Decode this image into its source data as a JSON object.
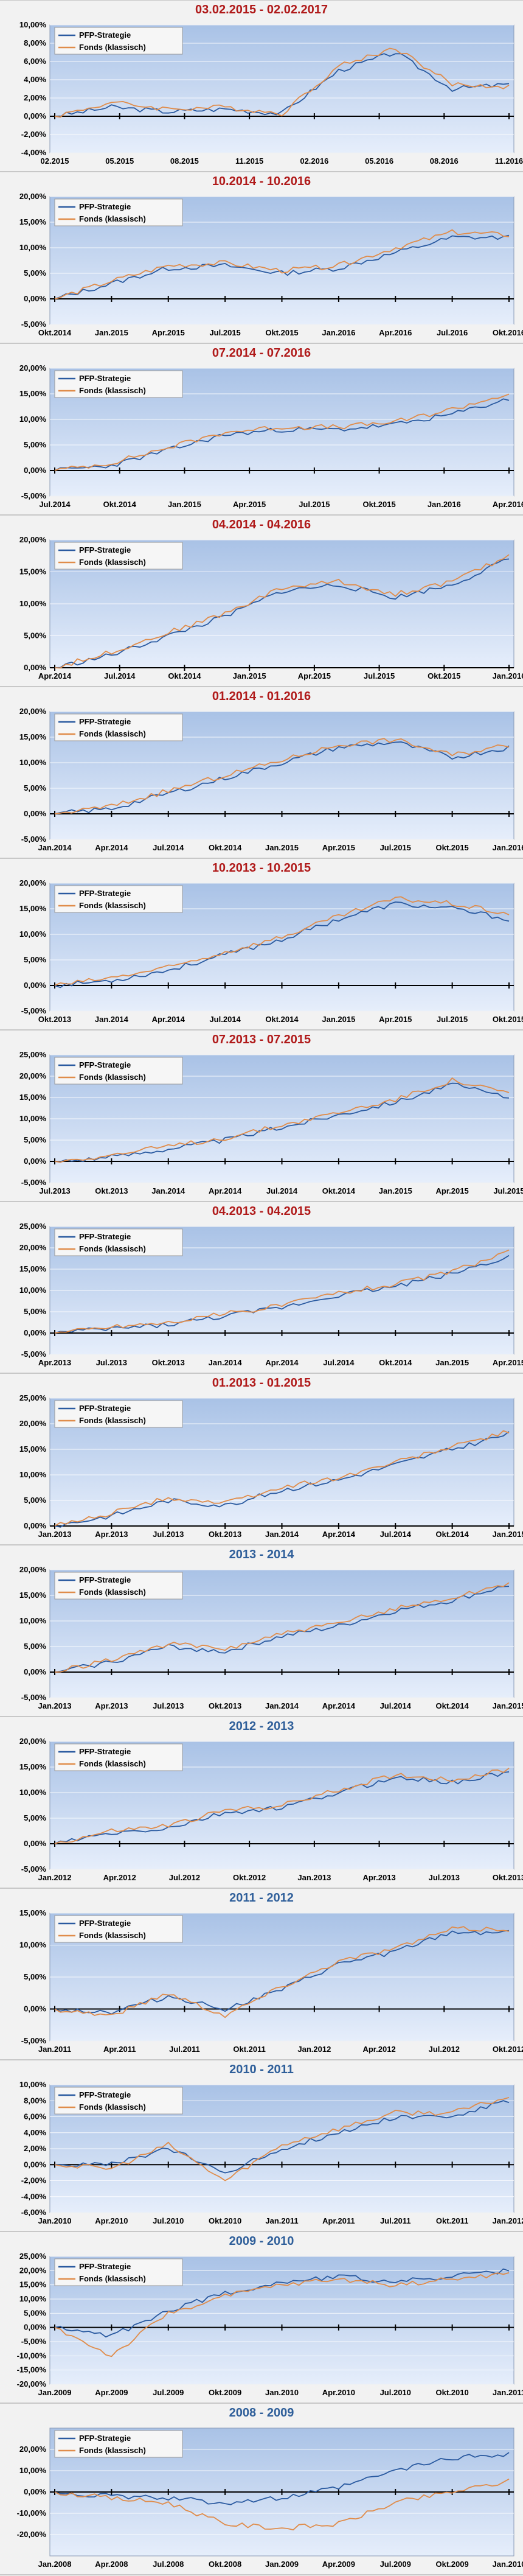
{
  "colors": {
    "strategy": "#2a5aa0",
    "fund": "#e08c4a",
    "title_dated": "#b01a1a",
    "title_year": "#2f5f9a",
    "plot_top": "#a9c2e6",
    "plot_bottom": "#e6eefb",
    "grid": "#ffffff",
    "axis": "#000000"
  },
  "legend": {
    "series_1": "PFP-Strategie",
    "series_2": "Fonds (klassisch)"
  },
  "chart_data": [
    {
      "type": "line",
      "title": "03.02.2015 - 02.02.2017",
      "title_style": "dated",
      "ylim": [
        -4,
        10
      ],
      "yticks": [
        -4,
        -2,
        0,
        2,
        4,
        6,
        8,
        10
      ],
      "ytick_labels": [
        "-4,00%",
        "-2,00%",
        "0,00%",
        "2,00%",
        "4,00%",
        "6,00%",
        "8,00%",
        "10,00%"
      ],
      "xticks": [
        "02.2015",
        "05.2015",
        "08.2015",
        "11.2015",
        "02.2016",
        "05.2016",
        "08.2016",
        "11.2016"
      ],
      "grid": true,
      "legend_position": "top-left",
      "x": [
        0,
        1,
        2,
        3,
        4,
        5,
        6,
        7,
        8
      ],
      "series": [
        {
          "name": "PFP-Strategie",
          "values": [
            0,
            1,
            0.5,
            0.8,
            0.3,
            5,
            7,
            3,
            3.5
          ]
        },
        {
          "name": "Fonds (klassisch)",
          "values": [
            0,
            1.5,
            0.8,
            1,
            0.3,
            5.5,
            7.5,
            3.5,
            3.2
          ]
        }
      ]
    },
    {
      "type": "line",
      "title": "10.2014 - 10.2016",
      "title_style": "dated",
      "ylim": [
        -5,
        20
      ],
      "yticks": [
        -5,
        0,
        5,
        10,
        15,
        20
      ],
      "ytick_labels": [
        "-5,00%",
        "0,00%",
        "5,00%",
        "10,00%",
        "15,00%",
        "20,00%"
      ],
      "xticks": [
        "Okt.2014",
        "Jan.2015",
        "Apr.2015",
        "Jul.2015",
        "Okt.2015",
        "Jan.2016",
        "Apr.2016",
        "Jul.2016",
        "Okt.2016"
      ],
      "grid": true,
      "legend_position": "top-left",
      "x": [
        0,
        1,
        2,
        3,
        4,
        5,
        6,
        7,
        8
      ],
      "series": [
        {
          "name": "PFP-Strategie",
          "values": [
            0,
            3,
            6,
            6.5,
            5,
            6,
            9,
            12,
            12
          ]
        },
        {
          "name": "Fonds (klassisch)",
          "values": [
            0,
            3.5,
            6.5,
            7,
            5.5,
            6.5,
            10,
            13,
            12.5
          ]
        }
      ]
    },
    {
      "type": "line",
      "title": "07.2014 - 07.2016",
      "title_style": "dated",
      "ylim": [
        -5,
        20
      ],
      "yticks": [
        -5,
        0,
        5,
        10,
        15,
        20
      ],
      "ytick_labels": [
        "-5,00%",
        "0,00%",
        "5,00%",
        "10,00%",
        "15,00%",
        "20,00%"
      ],
      "xticks": [
        "Jul.2014",
        "Okt.2014",
        "Jan.2015",
        "Apr.2015",
        "Jul.2015",
        "Okt.2015",
        "Jan.2016",
        "Apr.2016"
      ],
      "grid": true,
      "legend_position": "top-left",
      "x": [
        0,
        1,
        2,
        3,
        4,
        5,
        6,
        7,
        8
      ],
      "series": [
        {
          "name": "PFP-Strategie",
          "values": [
            0,
            1,
            4,
            7,
            8,
            8,
            9,
            11,
            14
          ]
        },
        {
          "name": "Fonds (klassisch)",
          "values": [
            0,
            1.5,
            4.5,
            7.5,
            8.5,
            8.5,
            9.5,
            12,
            15
          ]
        }
      ]
    },
    {
      "type": "line",
      "title": "04.2014 - 04.2016",
      "title_style": "dated",
      "ylim": [
        0,
        20
      ],
      "yticks": [
        0,
        5,
        10,
        15,
        20
      ],
      "ytick_labels": [
        "0,00%",
        "5,00%",
        "10,00%",
        "15,00%",
        "20,00%"
      ],
      "xticks": [
        "Apr.2014",
        "Jul.2014",
        "Okt.2014",
        "Jan.2015",
        "Apr.2015",
        "Jul.2015",
        "Okt.2015",
        "Jan.2016"
      ],
      "grid": true,
      "legend_position": "top-left",
      "x": [
        0,
        1,
        2,
        3,
        4,
        5,
        6,
        7,
        8
      ],
      "series": [
        {
          "name": "PFP-Strategie",
          "values": [
            0,
            2,
            5,
            8,
            12,
            13,
            11,
            13,
            17
          ]
        },
        {
          "name": "Fonds (klassisch)",
          "values": [
            0,
            2.5,
            5.5,
            8.5,
            12.5,
            13.5,
            11.5,
            13.5,
            17.5
          ]
        }
      ]
    },
    {
      "type": "line",
      "title": "01.2014 - 01.2016",
      "title_style": "dated",
      "ylim": [
        -5,
        20
      ],
      "yticks": [
        -5,
        0,
        5,
        10,
        15,
        20
      ],
      "ytick_labels": [
        "-5,00%",
        "0,00%",
        "5,00%",
        "10,00%",
        "15,00%",
        "20,00%"
      ],
      "xticks": [
        "Jan.2014",
        "Apr.2014",
        "Jul.2014",
        "Okt.2014",
        "Jan.2015",
        "Apr.2015",
        "Jul.2015",
        "Okt.2015",
        "Jan.2016"
      ],
      "grid": true,
      "legend_position": "top-left",
      "x": [
        0,
        1,
        2,
        3,
        4,
        5,
        6,
        7,
        8
      ],
      "series": [
        {
          "name": "PFP-Strategie",
          "values": [
            0,
            1,
            4,
            7,
            10,
            13,
            14,
            11,
            13
          ]
        },
        {
          "name": "Fonds (klassisch)",
          "values": [
            0,
            1.5,
            4.5,
            7.5,
            10.5,
            13.5,
            14.5,
            11.5,
            13.5
          ]
        }
      ]
    },
    {
      "type": "line",
      "title": "10.2013 - 10.2015",
      "title_style": "dated",
      "ylim": [
        -5,
        20
      ],
      "yticks": [
        -5,
        0,
        5,
        10,
        15,
        20
      ],
      "ytick_labels": [
        "-5,00%",
        "0,00%",
        "5,00%",
        "10,00%",
        "15,00%",
        "20,00%"
      ],
      "xticks": [
        "Okt.2013",
        "Jan.2014",
        "Apr.2014",
        "Jul.2014",
        "Okt.2014",
        "Jan.2015",
        "Apr.2015",
        "Jul.2015",
        "Okt.2015"
      ],
      "grid": true,
      "legend_position": "top-left",
      "x": [
        0,
        1,
        2,
        3,
        4,
        5,
        6,
        7,
        8
      ],
      "series": [
        {
          "name": "PFP-Strategie",
          "values": [
            0,
            1,
            3,
            6,
            9,
            13,
            16,
            15,
            13
          ]
        },
        {
          "name": "Fonds (klassisch)",
          "values": [
            0,
            1.5,
            3.5,
            6.5,
            9.5,
            13.5,
            17,
            16,
            14
          ]
        }
      ]
    },
    {
      "type": "line",
      "title": "07.2013 - 07.2015",
      "title_style": "dated",
      "ylim": [
        -5,
        25
      ],
      "yticks": [
        -5,
        0,
        5,
        10,
        15,
        20,
        25
      ],
      "ytick_labels": [
        "-5,00%",
        "0,00%",
        "5,00%",
        "10,00%",
        "15,00%",
        "20,00%",
        "25,00%"
      ],
      "xticks": [
        "Jul.2013",
        "Okt.2013",
        "Jan.2014",
        "Apr.2014",
        "Jul.2014",
        "Okt.2014",
        "Jan.2015",
        "Apr.2015",
        "Jul.2015"
      ],
      "grid": true,
      "legend_position": "top-left",
      "x": [
        0,
        1,
        2,
        3,
        4,
        5,
        6,
        7,
        8
      ],
      "series": [
        {
          "name": "PFP-Strategie",
          "values": [
            0,
            1,
            3,
            5,
            8,
            11,
            14,
            18,
            15
          ]
        },
        {
          "name": "Fonds (klassisch)",
          "values": [
            0,
            1.5,
            3.5,
            5.5,
            8.5,
            11.5,
            14.5,
            19,
            16
          ]
        }
      ]
    },
    {
      "type": "line",
      "title": "04.2013 - 04.2015",
      "title_style": "dated",
      "ylim": [
        -5,
        25
      ],
      "yticks": [
        -5,
        0,
        5,
        10,
        15,
        20,
        25
      ],
      "ytick_labels": [
        "-5,00%",
        "0,00%",
        "5,00%",
        "10,00%",
        "15,00%",
        "20,00%",
        "25,00%"
      ],
      "xticks": [
        "Apr.2013",
        "Jul.2013",
        "Okt.2013",
        "Jan.2014",
        "Apr.2014",
        "Jul.2014",
        "Okt.2014",
        "Jan.2015",
        "Apr.2015"
      ],
      "grid": true,
      "legend_position": "top-left",
      "x": [
        0,
        1,
        2,
        3,
        4,
        5,
        6,
        7,
        8
      ],
      "series": [
        {
          "name": "PFP-Strategie",
          "values": [
            0,
            1,
            2,
            4,
            6,
            9,
            11,
            14,
            18
          ]
        },
        {
          "name": "Fonds (klassisch)",
          "values": [
            0,
            1.5,
            2.5,
            4.5,
            6.5,
            9.5,
            11.5,
            14.5,
            19
          ]
        }
      ]
    },
    {
      "type": "line",
      "title": "01.2013 - 01.2015",
      "title_style": "dated",
      "ylim": [
        0,
        25
      ],
      "yticks": [
        0,
        5,
        10,
        15,
        20,
        25
      ],
      "ytick_labels": [
        "0,00%",
        "5,00%",
        "10,00%",
        "15,00%",
        "20,00%",
        "25,00%"
      ],
      "xticks": [
        "Jan.2013",
        "Apr.2013",
        "Jul.2013",
        "Okt.2013",
        "Jan.2014",
        "Apr.2014",
        "Jul.2014",
        "Okt.2014",
        "Jan.2015"
      ],
      "grid": true,
      "legend_position": "top-left",
      "x": [
        0,
        1,
        2,
        3,
        4,
        5,
        6,
        7,
        8
      ],
      "series": [
        {
          "name": "PFP-Strategie",
          "values": [
            0,
            2,
            5,
            4,
            7,
            9,
            12,
            15,
            18
          ]
        },
        {
          "name": "Fonds (klassisch)",
          "values": [
            0,
            2.5,
            5.5,
            4.5,
            7.5,
            9.5,
            12.5,
            15.5,
            18.5
          ]
        }
      ]
    },
    {
      "type": "line",
      "title": "2013 - 2014",
      "title_style": "year",
      "ylim": [
        -5,
        20
      ],
      "yticks": [
        -5,
        0,
        5,
        10,
        15,
        20
      ],
      "ytick_labels": [
        "-5,00%",
        "0,00%",
        "5,00%",
        "10,00%",
        "15,00%",
        "20,00%"
      ],
      "xticks": [
        "Jan.2013",
        "Apr.2013",
        "Jul.2013",
        "Okt.2013",
        "Jan.2014",
        "Apr.2014",
        "Jul.2014",
        "Okt.2014",
        "Jan.2015"
      ],
      "grid": true,
      "legend_position": "top-left",
      "x": [
        0,
        1,
        2,
        3,
        4,
        5,
        6,
        7,
        8
      ],
      "series": [
        {
          "name": "PFP-Strategie",
          "values": [
            0,
            2,
            5,
            4,
            7,
            9,
            12,
            14,
            17
          ]
        },
        {
          "name": "Fonds (klassisch)",
          "values": [
            0,
            2.5,
            5.5,
            4.5,
            7.5,
            9.5,
            12.5,
            14.5,
            17.5
          ]
        }
      ]
    },
    {
      "type": "line",
      "title": "2012 - 2013",
      "title_style": "year",
      "ylim": [
        -5,
        20
      ],
      "yticks": [
        -5,
        0,
        5,
        10,
        15,
        20
      ],
      "ytick_labels": [
        "-5,00%",
        "0,00%",
        "5,00%",
        "10,00%",
        "15,00%",
        "20,00%"
      ],
      "xticks": [
        "Jan.2012",
        "Apr.2012",
        "Jul.2012",
        "Okt.2012",
        "Jan.2013",
        "Apr.2013",
        "Jul.2013",
        "Okt.2013"
      ],
      "grid": true,
      "legend_position": "top-left",
      "x": [
        0,
        1,
        2,
        3,
        4,
        5,
        6,
        7,
        8
      ],
      "series": [
        {
          "name": "PFP-Strategie",
          "values": [
            0,
            2,
            3,
            6,
            7,
            10,
            13,
            12,
            14
          ]
        },
        {
          "name": "Fonds (klassisch)",
          "values": [
            0,
            2.5,
            3.5,
            6.5,
            7.5,
            10.5,
            13.5,
            12.5,
            14.5
          ]
        }
      ]
    },
    {
      "type": "line",
      "title": "2011 - 2012",
      "title_style": "year",
      "ylim": [
        -5,
        15
      ],
      "yticks": [
        -5,
        0,
        5,
        10,
        15
      ],
      "ytick_labels": [
        "-5,00%",
        "0,00%",
        "5,00%",
        "10,00%",
        "15,00%"
      ],
      "xticks": [
        "Jan.2011",
        "Apr.2011",
        "Jul.2011",
        "Okt.2011",
        "Jan.2012",
        "Apr.2012",
        "Jul.2012",
        "Okt.2012"
      ],
      "grid": true,
      "legend_position": "top-left",
      "x": [
        0,
        1,
        2,
        3,
        4,
        5,
        6,
        7,
        8
      ],
      "series": [
        {
          "name": "PFP-Strategie",
          "values": [
            0,
            -0.5,
            2,
            0,
            3,
            7,
            9,
            12,
            12
          ]
        },
        {
          "name": "Fonds (klassisch)",
          "values": [
            0,
            -1,
            2.5,
            -1,
            3.5,
            7.5,
            9.5,
            12.5,
            12.5
          ]
        }
      ]
    },
    {
      "type": "line",
      "title": "2010 - 2011",
      "title_style": "year",
      "ylim": [
        -6,
        10
      ],
      "yticks": [
        -6,
        -4,
        -2,
        0,
        2,
        4,
        6,
        8,
        10
      ],
      "ytick_labels": [
        "-6,00%",
        "-4,00%",
        "-2,00%",
        "0,00%",
        "2,00%",
        "4,00%",
        "6,00%",
        "8,00%",
        "10,00%"
      ],
      "xticks": [
        "Jan.2010",
        "Apr.2010",
        "Jul.2010",
        "Okt.2010",
        "Jan.2011",
        "Apr.2011",
        "Jul.2011",
        "Okt.2011",
        "Jan.2012"
      ],
      "grid": true,
      "legend_position": "top-left",
      "x": [
        0,
        1,
        2,
        3,
        4,
        5,
        6,
        7,
        8
      ],
      "series": [
        {
          "name": "PFP-Strategie",
          "values": [
            0,
            0,
            2,
            -1,
            2,
            4,
            6,
            6,
            8
          ]
        },
        {
          "name": "Fonds (klassisch)",
          "values": [
            0,
            -0.5,
            2.5,
            -2,
            2.5,
            4.5,
            6.5,
            6.5,
            8.5
          ]
        }
      ]
    },
    {
      "type": "line",
      "title": "2009 - 2010",
      "title_style": "year",
      "ylim": [
        -20,
        25
      ],
      "yticks": [
        -20,
        -15,
        -10,
        -5,
        0,
        5,
        10,
        15,
        20,
        25
      ],
      "ytick_labels": [
        "-20,00%",
        "-15,00%",
        "-10,00%",
        "-5,00%",
        "0,00%",
        "5,00%",
        "10,00%",
        "15,00%",
        "20,00%",
        "25,00%"
      ],
      "xticks": [
        "Jan.2009",
        "Apr.2009",
        "Jul.2009",
        "Okt.2009",
        "Jan.2010",
        "Apr.2010",
        "Jul.2010",
        "Okt.2010",
        "Jan.2011"
      ],
      "grid": true,
      "legend_position": "top-left",
      "x": [
        0,
        1,
        2,
        3,
        4,
        5,
        6,
        7,
        8
      ],
      "series": [
        {
          "name": "PFP-Strategie",
          "values": [
            0,
            -3,
            6,
            12,
            16,
            18,
            16,
            18,
            20
          ]
        },
        {
          "name": "Fonds (klassisch)",
          "values": [
            0,
            -10,
            5,
            11,
            15,
            17,
            15,
            17,
            19
          ]
        }
      ]
    },
    {
      "type": "line",
      "title": "2008 - 2009",
      "title_style": "year",
      "ylim": [
        -30,
        30
      ],
      "yticks": [
        -20,
        -10,
        0,
        10,
        20
      ],
      "ytick_labels": [
        "-20,00%",
        "-10,00%",
        "0,00%",
        "10,00%",
        "20,00%"
      ],
      "xticks": [
        "Jan.2008",
        "Apr.2008",
        "Jul.2008",
        "Okt.2008",
        "Jan.2009",
        "Apr.2009",
        "Jul.2009",
        "Okt.2009",
        "Jan.2010"
      ],
      "grid": true,
      "legend_position": "top-left",
      "x": [
        0,
        1,
        2,
        3,
        4,
        5,
        6,
        7,
        8
      ],
      "series": [
        {
          "name": "PFP-Strategie",
          "values": [
            0,
            -2,
            -3,
            -5,
            -3,
            2,
            10,
            16,
            18
          ]
        },
        {
          "name": "Fonds (klassisch)",
          "values": [
            0,
            -3,
            -5,
            -15,
            -17,
            -15,
            -5,
            0,
            5
          ]
        }
      ]
    }
  ]
}
